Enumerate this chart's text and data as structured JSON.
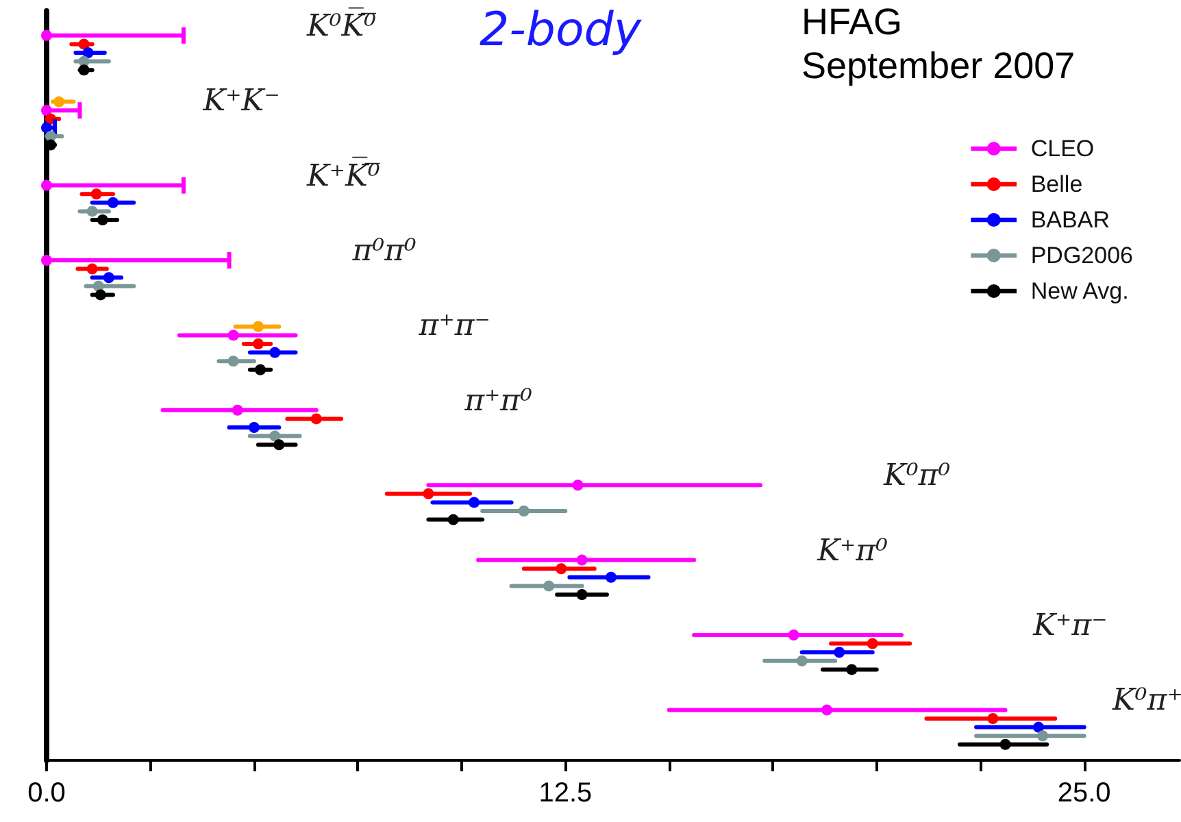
{
  "chart_data": {
    "type": "scatter",
    "orientation": "horizontal",
    "title": "2-body",
    "annotations": [
      "HFAG\nSeptember 2007"
    ],
    "categories": [
      "K⁰K̅⁰̅",
      "K⁺K⁻",
      "K⁺K̅⁰̅",
      "π⁰π⁰",
      "π⁺π⁻",
      "π⁺π⁰",
      "K⁰π⁰",
      "K⁺π⁰",
      "K⁺π⁻",
      "K⁰π⁺"
    ],
    "xlim": [
      0,
      27.3
    ],
    "xticks": [
      {
        "value": 0,
        "label": "0.0"
      },
      {
        "value": 2.5,
        "label": null
      },
      {
        "value": 5,
        "label": null
      },
      {
        "value": 7.5,
        "label": null
      },
      {
        "value": 10,
        "label": null
      },
      {
        "value": 12.5,
        "label": "12.5"
      },
      {
        "value": 15,
        "label": null
      },
      {
        "value": 17.5,
        "label": null
      },
      {
        "value": 20,
        "label": null
      },
      {
        "value": 22.5,
        "label": null
      },
      {
        "value": 25,
        "label": "25.0"
      }
    ],
    "marker": "circle",
    "legend": "top right",
    "series": [
      {
        "color": "#ffa500",
        "values": [
          null,
          0.3,
          null,
          null,
          5.1,
          null,
          null,
          null,
          null,
          null
        ],
        "errors": [
          null,
          [
            0.15,
            0.65
          ],
          null,
          null,
          [
            4.55,
            5.6
          ],
          null,
          null,
          null,
          null,
          null
        ]
      },
      {
        "name": "CLEO",
        "color": "#ff00ff",
        "values": [
          0,
          0,
          0,
          0,
          4.5,
          4.6,
          12.8,
          12.9,
          18.0,
          18.8
        ],
        "errors": [
          [
            0,
            3.3
          ],
          [
            0,
            0.8
          ],
          [
            0,
            3.3
          ],
          [
            0,
            4.4
          ],
          [
            3.2,
            6.0
          ],
          [
            2.8,
            6.5
          ],
          [
            9.2,
            17.2
          ],
          [
            10.4,
            15.6
          ],
          [
            15.6,
            20.6
          ],
          [
            15.0,
            23.1
          ]
        ]
      },
      {
        "name": "Belle",
        "color": "#ff0000",
        "values": [
          0.9,
          0.1,
          1.2,
          1.1,
          5.1,
          6.5,
          9.2,
          12.4,
          19.9,
          22.8
        ],
        "errors": [
          [
            0.6,
            1.1
          ],
          [
            0,
            0.3
          ],
          [
            0.85,
            1.6
          ],
          [
            0.75,
            1.45
          ],
          [
            4.75,
            5.4
          ],
          [
            5.8,
            7.1
          ],
          [
            8.2,
            10.2
          ],
          [
            11.5,
            13.2
          ],
          [
            18.9,
            20.8
          ],
          [
            21.2,
            24.3
          ]
        ]
      },
      {
        "name": "BABAR",
        "color": "#0000ff",
        "values": [
          1.0,
          0.0,
          1.6,
          1.5,
          5.5,
          5.0,
          10.3,
          13.6,
          19.1,
          23.9
        ],
        "errors": [
          [
            0.7,
            1.4
          ],
          [
            0,
            0.2
          ],
          [
            1.1,
            2.1
          ],
          [
            1.1,
            1.8
          ],
          [
            4.9,
            6.0
          ],
          [
            4.4,
            5.6
          ],
          [
            9.3,
            11.2
          ],
          [
            12.6,
            14.5
          ],
          [
            18.2,
            19.9
          ],
          [
            22.4,
            25.0
          ]
        ]
      },
      {
        "name": "PDG2006",
        "color": "#7a9696",
        "values": [
          0.9,
          0.1,
          1.1,
          1.25,
          4.5,
          5.5,
          11.5,
          12.1,
          18.2,
          24.0
        ],
        "errors": [
          [
            0.7,
            1.5
          ],
          [
            0,
            0.37
          ],
          [
            0.8,
            1.5
          ],
          [
            0.95,
            2.1
          ],
          [
            4.15,
            5.0
          ],
          [
            4.9,
            6.1
          ],
          [
            10.5,
            12.5
          ],
          [
            11.2,
            12.9
          ],
          [
            17.3,
            19.0
          ],
          [
            22.4,
            25.0
          ]
        ]
      },
      {
        "name": "New Avg.",
        "color": "#000000",
        "values": [
          0.9,
          0.1,
          1.35,
          1.3,
          5.15,
          5.6,
          9.8,
          12.9,
          19.4,
          23.1
        ],
        "errors": [
          [
            0.8,
            1.1
          ],
          [
            0,
            0.2
          ],
          [
            1.1,
            1.7
          ],
          [
            1.1,
            1.6
          ],
          [
            4.9,
            5.4
          ],
          [
            5.1,
            6.0
          ],
          [
            9.2,
            10.5
          ],
          [
            12.3,
            13.5
          ],
          [
            18.7,
            20.0
          ],
          [
            22.0,
            24.1
          ]
        ]
      }
    ]
  }
}
